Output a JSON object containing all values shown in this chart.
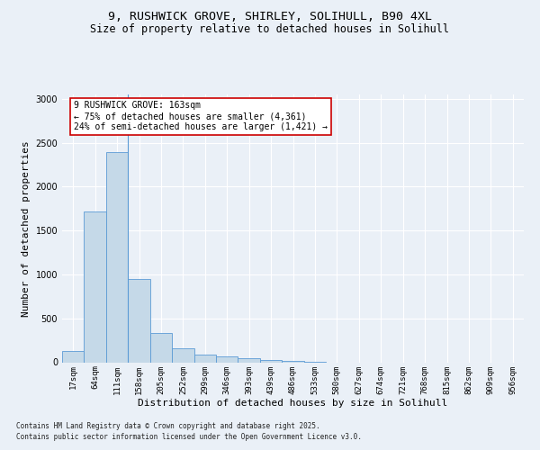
{
  "title_line1": "9, RUSHWICK GROVE, SHIRLEY, SOLIHULL, B90 4XL",
  "title_line2": "Size of property relative to detached houses in Solihull",
  "xlabel": "Distribution of detached houses by size in Solihull",
  "ylabel": "Number of detached properties",
  "categories": [
    "17sqm",
    "64sqm",
    "111sqm",
    "158sqm",
    "205sqm",
    "252sqm",
    "299sqm",
    "346sqm",
    "393sqm",
    "439sqm",
    "486sqm",
    "533sqm",
    "580sqm",
    "627sqm",
    "674sqm",
    "721sqm",
    "768sqm",
    "815sqm",
    "862sqm",
    "909sqm",
    "956sqm"
  ],
  "values": [
    130,
    1720,
    2390,
    950,
    335,
    155,
    90,
    65,
    45,
    28,
    15,
    5,
    0,
    0,
    0,
    0,
    0,
    0,
    0,
    0,
    0
  ],
  "bar_color": "#c5d9e8",
  "bar_edge_color": "#5b9bd5",
  "vline_x_index": 2.5,
  "annotation_text": "9 RUSHWICK GROVE: 163sqm\n← 75% of detached houses are smaller (4,361)\n24% of semi-detached houses are larger (1,421) →",
  "annotation_box_color": "#ffffff",
  "annotation_box_edge_color": "#cc0000",
  "footnote_line1": "Contains HM Land Registry data © Crown copyright and database right 2025.",
  "footnote_line2": "Contains public sector information licensed under the Open Government Licence v3.0.",
  "background_color": "#eaf0f7",
  "plot_background_color": "#eaf0f7",
  "ylim": [
    0,
    3050
  ],
  "grid_color": "#ffffff",
  "title_fontsize": 9.5,
  "subtitle_fontsize": 8.5,
  "tick_fontsize": 6.5,
  "label_fontsize": 8,
  "annotation_fontsize": 7,
  "footnote_fontsize": 5.5
}
